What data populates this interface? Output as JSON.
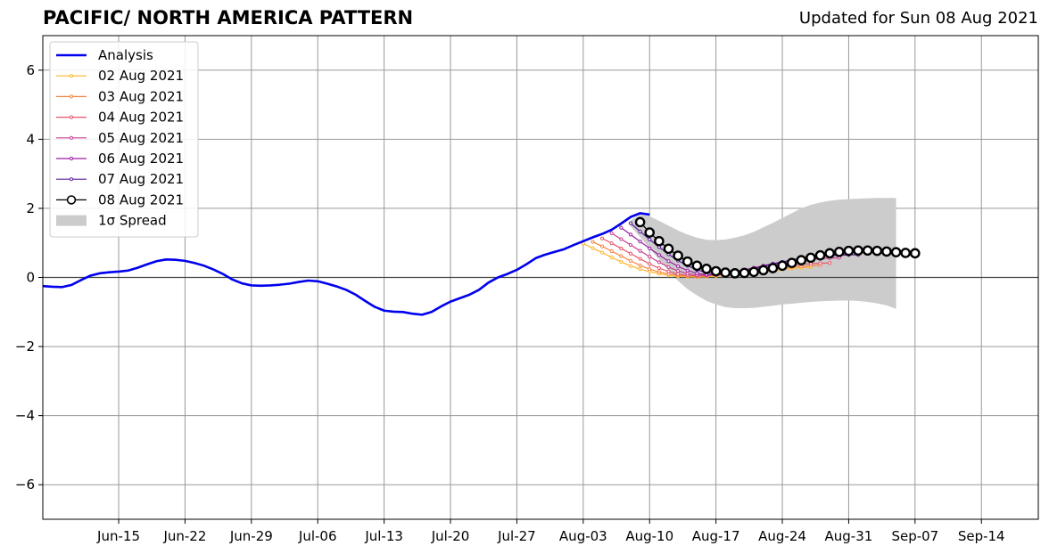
{
  "chart_data": {
    "type": "line",
    "title": "PACIFIC/ NORTH AMERICA PATTERN",
    "subtitle": "Updated for Sun 08 Aug 2021",
    "xlabel": "",
    "ylabel": "",
    "x_start": "2021-06-07",
    "x_end": "2021-09-20",
    "ylim": [
      -7,
      7
    ],
    "yticks": [
      -6,
      -4,
      -2,
      0,
      2,
      4,
      6
    ],
    "xticks": [
      {
        "date": "2021-06-15",
        "label": "Jun-15"
      },
      {
        "date": "2021-06-22",
        "label": "Jun-22"
      },
      {
        "date": "2021-06-29",
        "label": "Jun-29"
      },
      {
        "date": "2021-07-06",
        "label": "Jul-06"
      },
      {
        "date": "2021-07-13",
        "label": "Jul-13"
      },
      {
        "date": "2021-07-20",
        "label": "Jul-20"
      },
      {
        "date": "2021-07-27",
        "label": "Jul-27"
      },
      {
        "date": "2021-08-03",
        "label": "Aug-03"
      },
      {
        "date": "2021-08-10",
        "label": "Aug-10"
      },
      {
        "date": "2021-08-17",
        "label": "Aug-17"
      },
      {
        "date": "2021-08-24",
        "label": "Aug-24"
      },
      {
        "date": "2021-08-31",
        "label": "Aug-31"
      },
      {
        "date": "2021-09-07",
        "label": "Sep-07"
      },
      {
        "date": "2021-09-14",
        "label": "Sep-14"
      }
    ],
    "grid": true,
    "legend_position": "top-left",
    "legend": {
      "analysis": "Analysis",
      "f0802": "02 Aug 2021",
      "f0803": "03 Aug 2021",
      "f0804": "04 Aug 2021",
      "f0805": "05 Aug 2021",
      "f0806": "06 Aug 2021",
      "f0807": "07 Aug 2021",
      "f0808": "08 Aug 2021",
      "spread": "1σ Spread"
    },
    "analysis": {
      "name": "Analysis",
      "color": "#0000ee",
      "start": "2021-06-07",
      "values": [
        -0.25,
        -0.27,
        -0.28,
        -0.22,
        -0.08,
        0.05,
        0.12,
        0.15,
        0.17,
        0.2,
        0.28,
        0.38,
        0.47,
        0.52,
        0.51,
        0.48,
        0.42,
        0.34,
        0.23,
        0.1,
        -0.06,
        -0.17,
        -0.23,
        -0.24,
        -0.23,
        -0.21,
        -0.18,
        -0.13,
        -0.09,
        -0.11,
        -0.18,
        -0.26,
        -0.36,
        -0.5,
        -0.68,
        -0.85,
        -0.96,
        -0.99,
        -1.0,
        -1.05,
        -1.08,
        -1.0,
        -0.84,
        -0.7,
        -0.6,
        -0.5,
        -0.36,
        -0.15,
        0.0,
        0.1,
        0.22,
        0.38,
        0.56,
        0.66,
        0.74,
        0.82,
        0.94,
        1.05,
        1.16,
        1.26,
        1.38,
        1.56,
        1.75,
        1.86,
        1.82
      ]
    },
    "spread": {
      "start": "2021-08-08",
      "upper": [
        1.65,
        1.82,
        1.77,
        1.64,
        1.5,
        1.36,
        1.24,
        1.15,
        1.09,
        1.08,
        1.1,
        1.15,
        1.22,
        1.32,
        1.45,
        1.58,
        1.72,
        1.86,
        2.0,
        2.1,
        2.17,
        2.22,
        2.25,
        2.27,
        2.28,
        2.29,
        2.3,
        2.3,
        2.3
      ],
      "lower": [
        1.48,
        1.17,
        0.84,
        0.52,
        0.2,
        -0.1,
        -0.34,
        -0.52,
        -0.68,
        -0.78,
        -0.86,
        -0.89,
        -0.89,
        -0.88,
        -0.85,
        -0.82,
        -0.78,
        -0.76,
        -0.73,
        -0.71,
        -0.69,
        -0.68,
        -0.67,
        -0.67,
        -0.68,
        -0.71,
        -0.75,
        -0.81,
        -0.91
      ]
    },
    "series": [
      {
        "name": "02 Aug 2021",
        "color": "#fcb52a",
        "start": "2021-08-03",
        "values": [
          0.98,
          0.85,
          0.72,
          0.58,
          0.45,
          0.33,
          0.24,
          0.17,
          0.11,
          0.06,
          0.03,
          0.02,
          0.01,
          0.02,
          0.04,
          0.06,
          0.08,
          0.11,
          0.14,
          0.17,
          0.2,
          0.23,
          0.26,
          0.28,
          0.3
        ]
      },
      {
        "name": "03 Aug 2021",
        "color": "#f48442",
        "start": "2021-08-04",
        "values": [
          1.03,
          0.9,
          0.76,
          0.62,
          0.48,
          0.35,
          0.24,
          0.16,
          0.1,
          0.06,
          0.04,
          0.03,
          0.04,
          0.06,
          0.09,
          0.12,
          0.15,
          0.18,
          0.21,
          0.24,
          0.27,
          0.3,
          0.32,
          0.34,
          0.35
        ]
      },
      {
        "name": "04 Aug 2021",
        "color": "#e5566b",
        "start": "2021-08-05",
        "values": [
          1.13,
          0.99,
          0.84,
          0.69,
          0.54,
          0.39,
          0.27,
          0.17,
          0.1,
          0.06,
          0.04,
          0.05,
          0.07,
          0.1,
          0.14,
          0.18,
          0.22,
          0.26,
          0.29,
          0.32,
          0.35,
          0.38,
          0.4,
          0.41,
          0.42
        ]
      },
      {
        "name": "05 Aug 2021",
        "color": "#c73e8f",
        "start": "2021-08-06",
        "values": [
          1.28,
          1.11,
          0.94,
          0.77,
          0.6,
          0.44,
          0.3,
          0.19,
          0.11,
          0.07,
          0.06,
          0.08,
          0.12,
          0.17,
          0.22,
          0.27,
          0.32,
          0.37,
          0.41,
          0.45,
          0.49,
          0.52,
          0.54,
          0.56,
          0.57
        ]
      },
      {
        "name": "06 Aug 2021",
        "color": "#9a1fa3",
        "start": "2021-08-07",
        "values": [
          1.44,
          1.24,
          1.04,
          0.84,
          0.65,
          0.47,
          0.32,
          0.2,
          0.12,
          0.08,
          0.08,
          0.11,
          0.16,
          0.22,
          0.28,
          0.34,
          0.4,
          0.45,
          0.5,
          0.54,
          0.58,
          0.61,
          0.63,
          0.64,
          0.65
        ]
      },
      {
        "name": "07 Aug 2021",
        "color": "#5b1c9a",
        "start": "2021-08-08",
        "values": [
          1.57,
          1.33,
          1.1,
          0.88,
          0.67,
          0.49,
          0.34,
          0.22,
          0.14,
          0.1,
          0.1,
          0.13,
          0.19,
          0.25,
          0.32,
          0.39,
          0.45,
          0.51,
          0.56,
          0.6,
          0.63,
          0.65,
          0.66,
          0.66,
          0.65
        ]
      },
      {
        "name": "08 Aug 2021",
        "color": "#000000",
        "start": "2021-08-09",
        "values": [
          1.6,
          1.3,
          1.05,
          0.83,
          0.63,
          0.46,
          0.34,
          0.25,
          0.18,
          0.14,
          0.12,
          0.13,
          0.16,
          0.21,
          0.27,
          0.34,
          0.42,
          0.5,
          0.57,
          0.64,
          0.7,
          0.74,
          0.77,
          0.78,
          0.78,
          0.77,
          0.75,
          0.73,
          0.71,
          0.7
        ]
      }
    ]
  }
}
